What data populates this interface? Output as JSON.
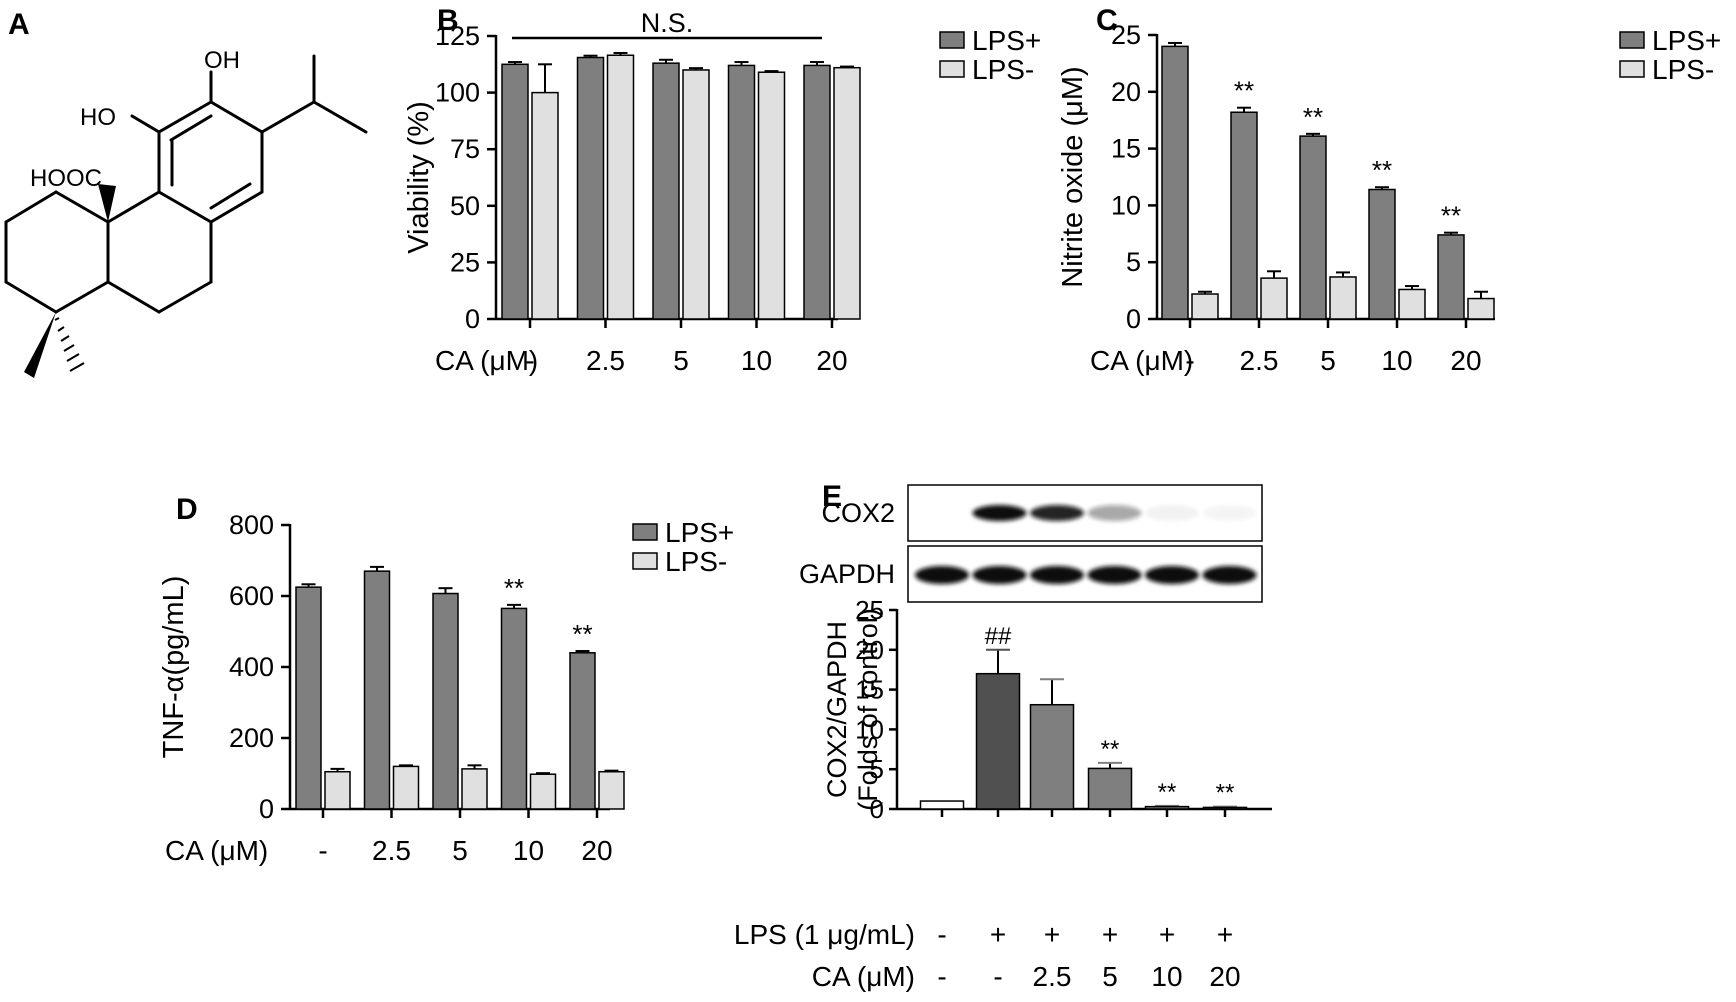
{
  "colors": {
    "lps_plus": "#7f7f7f",
    "lps_minus": "#e0e0e0",
    "e_control": "#ffffff",
    "e_lps": "#505050",
    "e_ca25": "#7f7f7f",
    "e_treated": "#7f7f7f",
    "axis": "#000000"
  },
  "panels": {
    "A": {
      "letter": "A",
      "structure_labels": {
        "oh_top": "OH",
        "oh_left": "HO",
        "cooh": "HOOC"
      }
    }
  },
  "chart_data": [
    {
      "id": "B",
      "letter": "B",
      "type": "bar",
      "ylabel": "Viability (%)",
      "xlabel": "CA (μM)",
      "ylim": [
        0,
        125
      ],
      "yticks": [
        "0",
        "25",
        "50",
        "75",
        "100",
        "125"
      ],
      "categories": [
        "-",
        "2.5",
        "5",
        "10",
        "20"
      ],
      "series": [
        {
          "name": "LPS+",
          "color": "#7f7f7f",
          "values": [
            112.5,
            115.5,
            113.0,
            112.0,
            112.0
          ],
          "errors": [
            1.0,
            0.8,
            1.5,
            1.5,
            1.5
          ]
        },
        {
          "name": "LPS-",
          "color": "#e0e0e0",
          "values": [
            100.0,
            116.5,
            110.0,
            109.0,
            111.0
          ],
          "errors": [
            12.5,
            1.0,
            0.8,
            0.5,
            0.5
          ]
        }
      ],
      "annotations": [
        "N.S."
      ],
      "legend": "top-right"
    },
    {
      "id": "C",
      "letter": "C",
      "type": "bar",
      "ylabel": "Nitrite oxide (μM)",
      "xlabel": "CA (μM)",
      "ylim": [
        0,
        25
      ],
      "yticks": [
        "0",
        "5",
        "10",
        "15",
        "20",
        "25"
      ],
      "categories": [
        "-",
        "2.5",
        "5",
        "10",
        "20"
      ],
      "series": [
        {
          "name": "LPS+",
          "color": "#7f7f7f",
          "values": [
            24.0,
            18.2,
            16.1,
            11.4,
            7.4
          ],
          "errors": [
            0.3,
            0.4,
            0.2,
            0.2,
            0.2
          ],
          "marks": [
            "",
            "**",
            "**",
            "**",
            "**"
          ]
        },
        {
          "name": "LPS-",
          "color": "#e0e0e0",
          "values": [
            2.2,
            3.6,
            3.7,
            2.6,
            1.8
          ],
          "errors": [
            0.2,
            0.6,
            0.4,
            0.3,
            0.6
          ]
        }
      ],
      "legend": "top-right"
    },
    {
      "id": "D",
      "letter": "D",
      "type": "bar",
      "ylabel": "TNF-α(pg/mL)",
      "xlabel": "CA (μM)",
      "ylim": [
        0,
        800
      ],
      "yticks": [
        "0",
        "200",
        "400",
        "600",
        "800"
      ],
      "categories": [
        "-",
        "2.5",
        "5",
        "10",
        "20"
      ],
      "series": [
        {
          "name": "LPS+",
          "color": "#7f7f7f",
          "values": [
            625,
            670,
            607,
            565,
            440
          ],
          "errors": [
            8,
            12,
            15,
            10,
            5
          ],
          "marks": [
            "",
            "",
            "",
            "**",
            "**"
          ]
        },
        {
          "name": "LPS-",
          "color": "#e0e0e0",
          "values": [
            105,
            120,
            113,
            98,
            105
          ],
          "errors": [
            8,
            3,
            10,
            3,
            3
          ]
        }
      ],
      "legend": "top-right"
    },
    {
      "id": "E",
      "letter": "E",
      "type": "bar",
      "ylabel_lines": [
        "COX2/GAPDH",
        "(Folds of control)"
      ],
      "ylim": [
        0,
        25
      ],
      "yticks": [
        "0",
        "5",
        "10",
        "15",
        "20",
        "25"
      ],
      "row_labels": [
        "LPS (1 μg/mL)",
        "CA (μM)"
      ],
      "lps_row": [
        "-",
        "+",
        "+",
        "+",
        "+",
        "+"
      ],
      "ca_row": [
        "-",
        "-",
        "2.5",
        "5",
        "10",
        "20"
      ],
      "values": [
        1.0,
        17.0,
        13.1,
        5.1,
        0.3,
        0.2
      ],
      "errors": [
        0,
        3.0,
        3.2,
        0.7,
        0.1,
        0.1
      ],
      "marks": [
        "",
        "##",
        "",
        "**",
        "**",
        "**"
      ],
      "colors": [
        "#ffffff",
        "#505050",
        "#7f7f7f",
        "#7f7f7f",
        "#7f7f7f",
        "#7f7f7f"
      ],
      "blot_labels": [
        "COX2",
        "GAPDH"
      ],
      "cox2_band_intensity": [
        0,
        1.0,
        0.9,
        0.35,
        0.05,
        0.04
      ],
      "gapdh_band_intensity": [
        1,
        1,
        1,
        1,
        1,
        1
      ]
    }
  ]
}
